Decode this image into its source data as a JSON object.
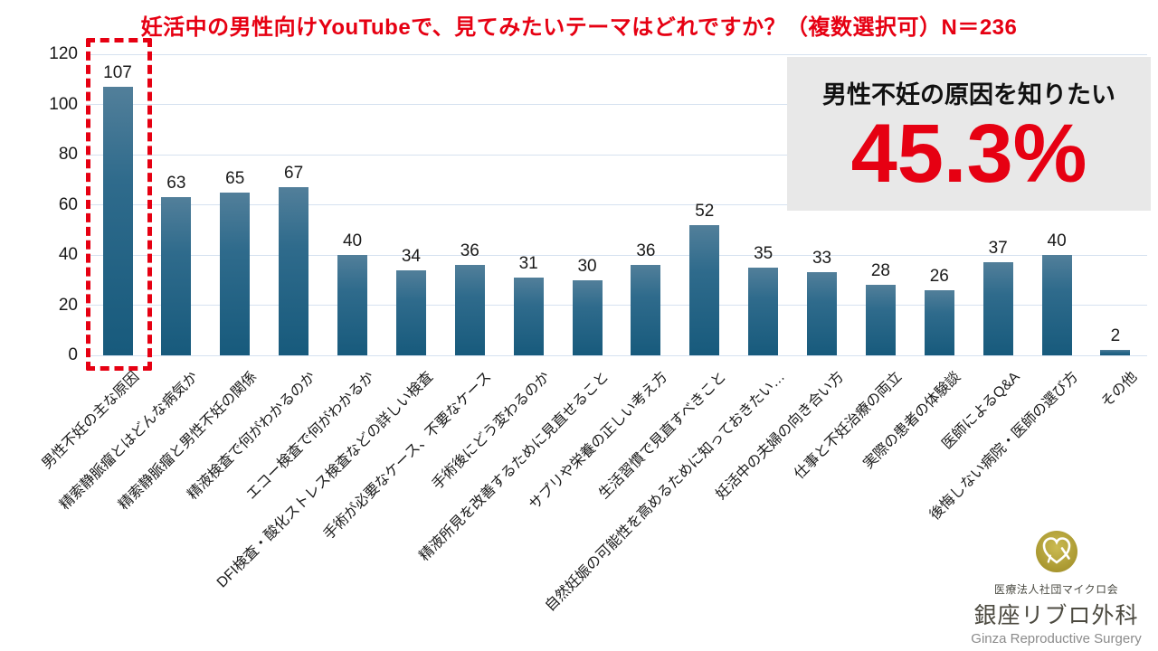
{
  "title": "妊活中の男性向けYouTubeで、見てみたいテーマはどれですか？（複数選択可）N＝236",
  "title_color": "#e60012",
  "callout": {
    "label": "男性不妊の原因を知りたい",
    "value": "45.3%",
    "value_color": "#e60012",
    "background": "#e8e8e8"
  },
  "chart_data": {
    "type": "bar",
    "title": "妊活中の男性向けYouTubeで、見てみたいテーマはどれですか？（複数選択可）N＝236",
    "xlabel": "",
    "ylabel": "",
    "ylim": [
      0,
      120
    ],
    "yticks": [
      0,
      20,
      40,
      60,
      80,
      100,
      120
    ],
    "grid": true,
    "legend": false,
    "categories": [
      "男性不妊の主な原因",
      "精索静脈瘤とはどんな病気か",
      "精索静脈瘤と男性不妊の関係",
      "精液検査で何がわかるのか",
      "エコー検査で何がわかるか",
      "DFI検査・酸化ストレス検査などの詳しい検査",
      "手術が必要なケース、不要なケース",
      "手術後にどう変わるのか",
      "精液所見を改善するために見直せること",
      "サプリや栄養の正しい考え方",
      "生活習慣で見直すべきこと",
      "自然妊娠の可能性を高めるために知っておきたい…",
      "妊活中の夫婦の向き合い方",
      "仕事と不妊治療の両立",
      "実際の患者の体験談",
      "医師によるQ&A",
      "後悔しない病院・医師の選び方",
      "その他"
    ],
    "values": [
      107,
      63,
      65,
      67,
      40,
      34,
      36,
      31,
      30,
      36,
      52,
      35,
      33,
      28,
      26,
      37,
      40,
      2
    ],
    "bar_color_top": "#527f9a",
    "bar_color_bottom": "#175a7c",
    "grid_color": "#d6e2f0",
    "highlight_index": 0,
    "highlight_color": "#e60012"
  },
  "logo": {
    "org": "医療法人社団マイクロ会",
    "name": "銀座リブロ外科",
    "en": "Ginza Reproductive Surgery"
  }
}
